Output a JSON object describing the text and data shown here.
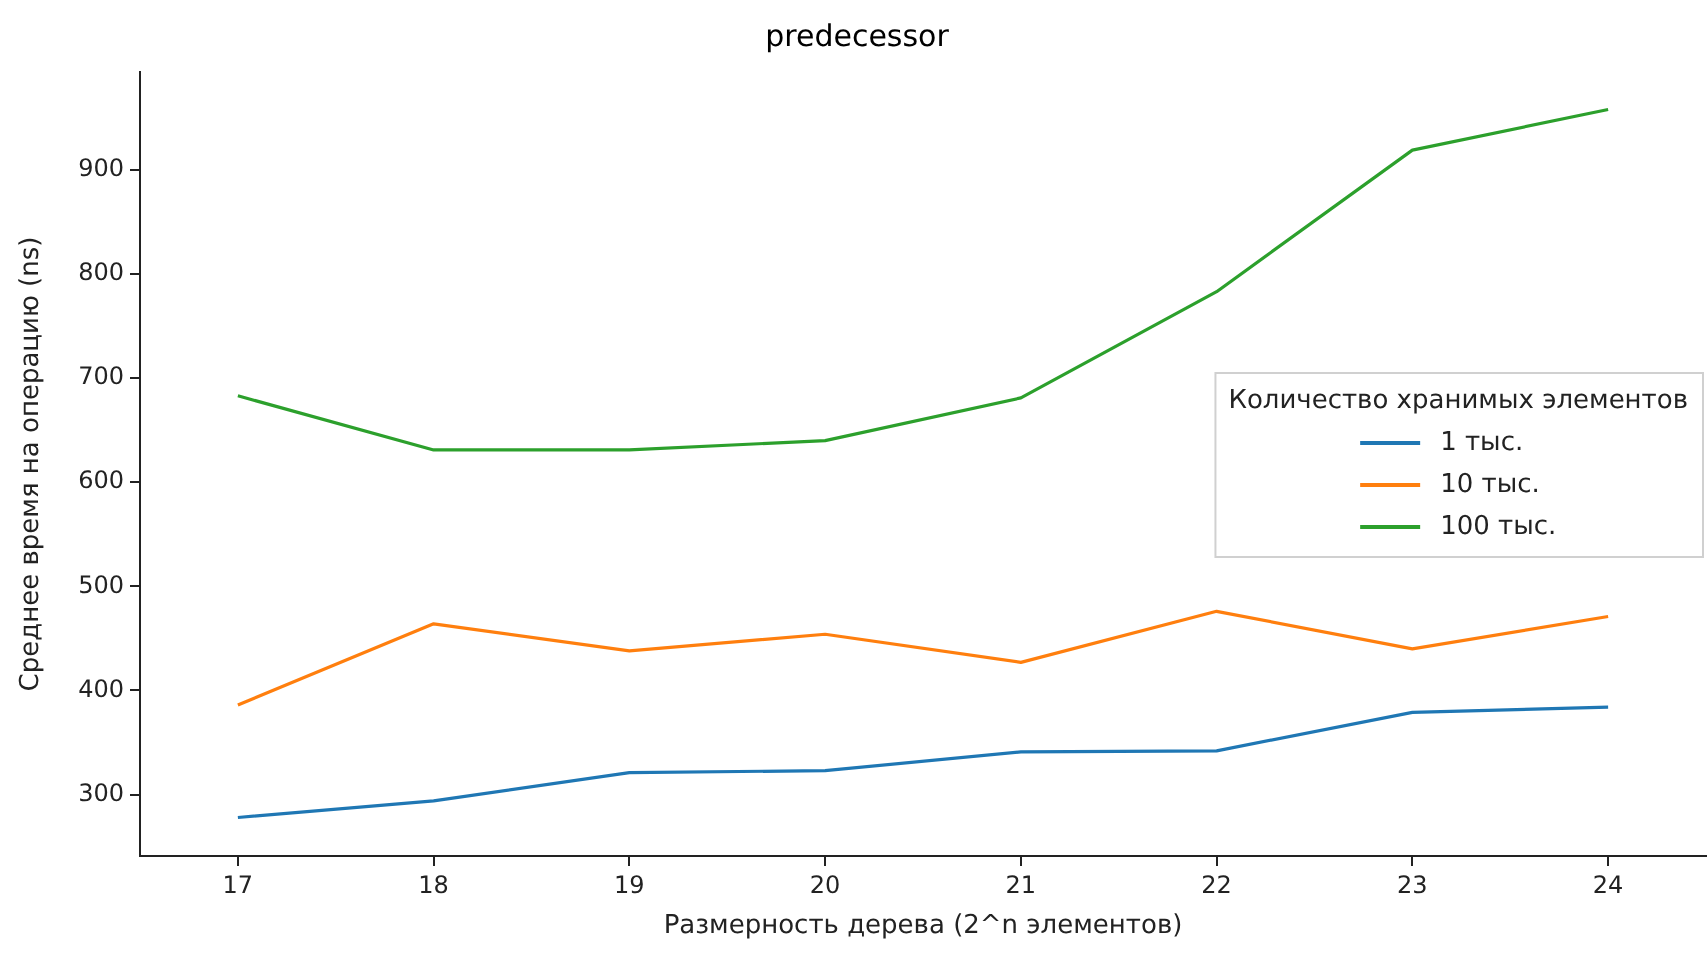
{
  "chart_data": {
    "type": "line",
    "title": "predecessor",
    "xlabel": "Размерность дерева (2^n элементов)",
    "ylabel": "Среднее время на операцию (ns)",
    "legend_title": "Количество хранимых элементов",
    "categories": [
      "17",
      "18",
      "19",
      "20",
      "21",
      "22",
      "23",
      "24"
    ],
    "series": [
      {
        "name": "1 тыс.",
        "color": "#1f77b4",
        "values": [
          278,
          294,
          321,
          323,
          341,
          342,
          379,
          384
        ]
      },
      {
        "name": "10 тыс.",
        "color": "#ff7f0e",
        "values": [
          386,
          464,
          438,
          454,
          427,
          476,
          440,
          471
        ]
      },
      {
        "name": "100 тыс.",
        "color": "#2ca02c",
        "values": [
          683,
          631,
          631,
          640,
          681,
          783,
          919,
          958
        ]
      }
    ],
    "ylim": [
      241,
      994
    ],
    "yticks": [
      300,
      400,
      500,
      600,
      700,
      800,
      900
    ],
    "grid": false,
    "legend": "right",
    "marker": "none",
    "line_style": "solid"
  }
}
